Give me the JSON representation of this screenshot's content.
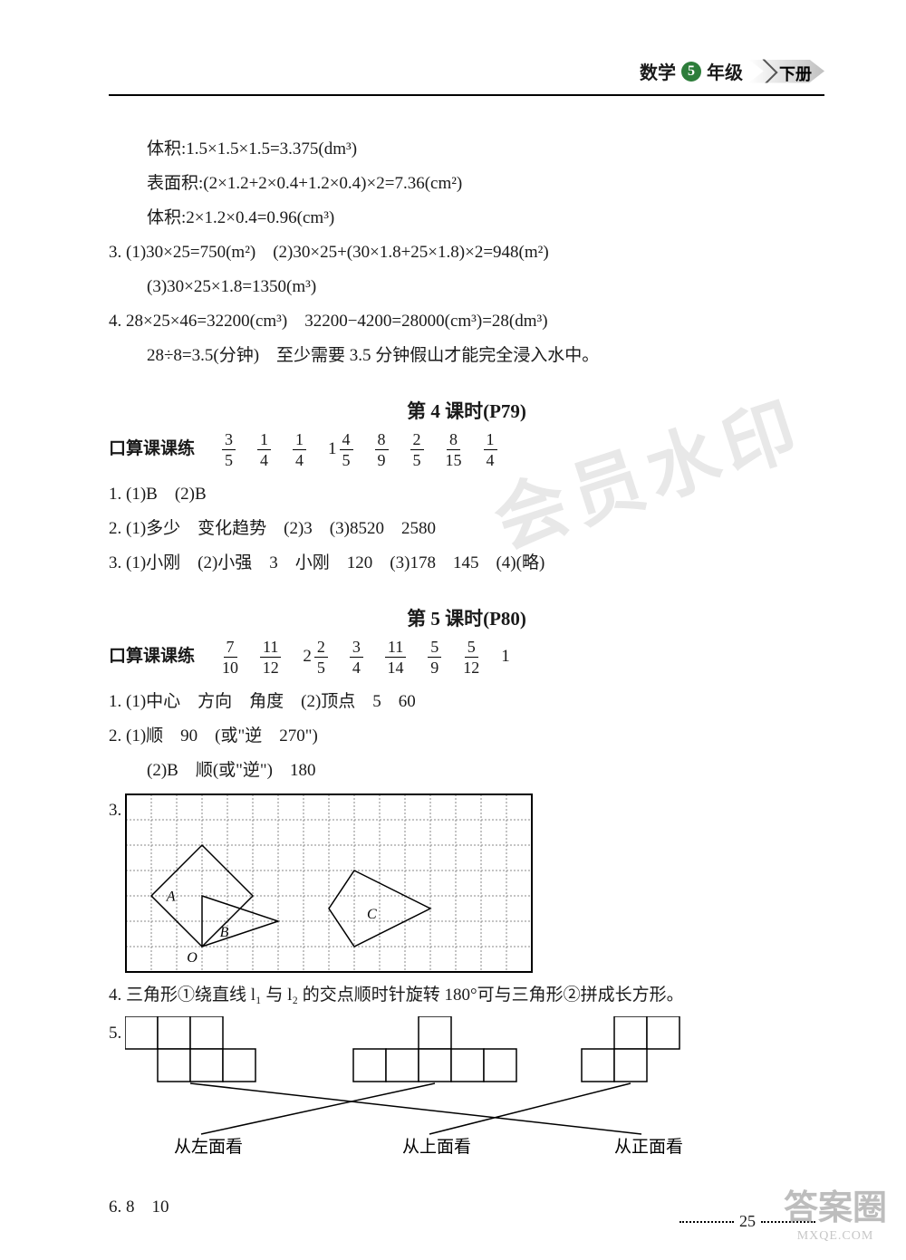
{
  "header": {
    "subject": "数学",
    "grade_num": "5",
    "grade_suffix": "年级",
    "volume": "下册"
  },
  "top_block": {
    "l1": "体积:1.5×1.5×1.5=3.375(dm³)",
    "l2": "表面积:(2×1.2+2×0.4+1.2×0.4)×2=7.36(cm²)",
    "l3": "体积:2×1.2×0.4=0.96(cm³)",
    "q3": "3. (1)30×25=750(m²)　(2)30×25+(30×1.8+25×1.8)×2=948(m²)",
    "q3b": "(3)30×25×1.8=1350(m³)",
    "q4a": "4. 28×25×46=32200(cm³)　32200−4200=28000(cm³)=28(dm³)",
    "q4b": "28÷8=3.5(分钟)　至少需要 3.5 分钟假山才能完全浸入水中。"
  },
  "lesson4": {
    "title": "第 4 课时(P79)",
    "mental_label": "口算课课练",
    "fracs": [
      {
        "n": "3",
        "d": "5"
      },
      {
        "n": "1",
        "d": "4"
      },
      {
        "n": "1",
        "d": "4"
      },
      {
        "whole": "1",
        "n": "4",
        "d": "5"
      },
      {
        "n": "8",
        "d": "9"
      },
      {
        "n": "2",
        "d": "5"
      },
      {
        "n": "8",
        "d": "15"
      },
      {
        "n": "1",
        "d": "4"
      }
    ],
    "q1": "1. (1)B　(2)B",
    "q2": "2. (1)多少　变化趋势　(2)3　(3)8520　2580",
    "q3": "3. (1)小刚　(2)小强　3　小刚　120　(3)178　145　(4)(略)"
  },
  "lesson5": {
    "title": "第 5 课时(P80)",
    "mental_label": "口算课课练",
    "fracs": [
      {
        "n": "7",
        "d": "10"
      },
      {
        "n": "11",
        "d": "12"
      },
      {
        "whole": "2",
        "n": "2",
        "d": "5"
      },
      {
        "n": "3",
        "d": "4"
      },
      {
        "n": "11",
        "d": "14"
      },
      {
        "n": "5",
        "d": "9"
      },
      {
        "n": "5",
        "d": "12"
      },
      {
        "plain": "1"
      }
    ],
    "q1": "1. (1)中心　方向　角度　(2)顶点　5　60",
    "q2a": "2. (1)顺　90　(或\"逆　270\")",
    "q2b": "(2)B　顺(或\"逆\")　180",
    "q3_label": "3.",
    "q3_grid": {
      "cols": 16,
      "rows": 7,
      "cell": 28,
      "grid_color": "#888",
      "border_color": "#000",
      "labels": {
        "A": "A",
        "B": "B",
        "C": "C",
        "O": "O"
      },
      "shapeA": [
        [
          3,
          2
        ],
        [
          5,
          4
        ],
        [
          3,
          6
        ],
        [
          1,
          4
        ]
      ],
      "shapeB": [
        [
          3,
          4
        ],
        [
          6,
          5
        ],
        [
          3,
          6
        ]
      ],
      "shapeC": [
        [
          9,
          3
        ],
        [
          12,
          4.5
        ],
        [
          9,
          6
        ],
        [
          8,
          4.5
        ]
      ],
      "label_pos": {
        "A": [
          1.6,
          4.2
        ],
        "O": [
          2.4,
          6.6
        ],
        "B": [
          3.7,
          5.6
        ],
        "C": [
          9.5,
          4.9
        ]
      }
    },
    "q4": "4. 三角形①绕直线 l₁ 与 l₂ 的交点顺时针旋转 180°可与三角形②拼成长方形。",
    "q5_label": "5.",
    "q5": {
      "cell": 36,
      "shapes": [
        {
          "x": 0,
          "cells": [
            [
              0,
              0
            ],
            [
              1,
              0
            ],
            [
              2,
              0
            ],
            [
              1,
              1
            ],
            [
              2,
              1
            ],
            [
              3,
              1
            ]
          ]
        },
        {
          "x": 7,
          "cells": [
            [
              2,
              0
            ],
            [
              0,
              1
            ],
            [
              1,
              1
            ],
            [
              2,
              1
            ],
            [
              3,
              1
            ],
            [
              4,
              1
            ]
          ]
        },
        {
          "x": 14,
          "cells": [
            [
              1,
              0
            ],
            [
              2,
              0
            ],
            [
              0,
              1
            ],
            [
              1,
              1
            ]
          ]
        }
      ],
      "view_labels": [
        "从左面看",
        "从上面看",
        "从正面看"
      ],
      "lines": [
        [
          0,
          2
        ],
        [
          1,
          0
        ],
        [
          2,
          1
        ]
      ]
    },
    "q6": "6. 8　10"
  },
  "page_number": "25",
  "watermark_text": "会员水印",
  "corner": {
    "big": "答案圈",
    "url": "MXQE.COM"
  }
}
